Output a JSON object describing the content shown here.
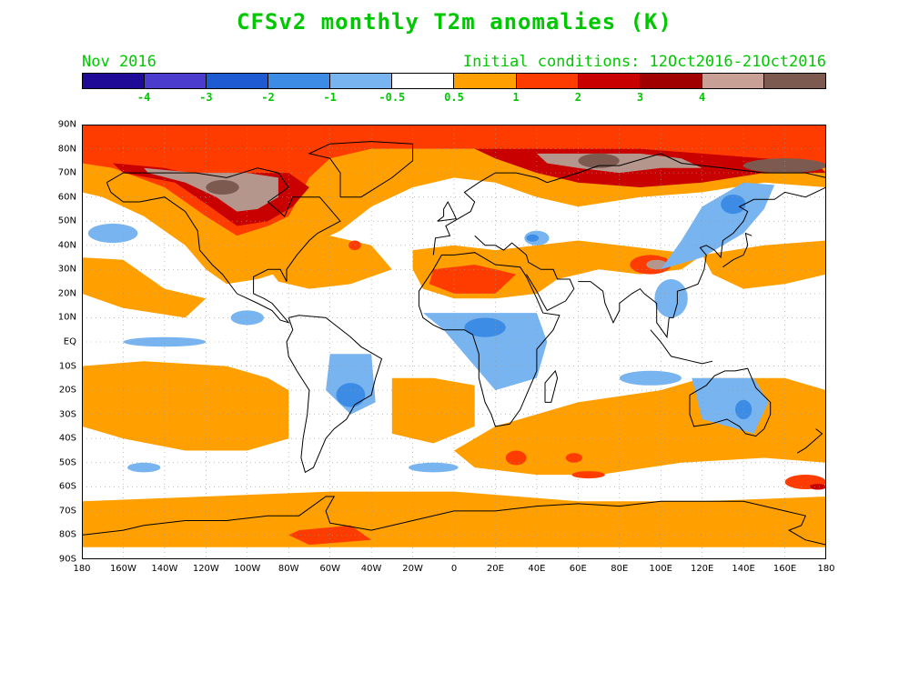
{
  "title": "CFSv2 monthly T2m anomalies (K)",
  "valid_label": "Nov 2016",
  "ic_label": "Initial conditions: 12Oct2016-21Oct2016",
  "colorbar": {
    "colors": [
      "#1e0a96",
      "#4b3ccd",
      "#1e5ad2",
      "#3c8ce6",
      "#78b4f0",
      "#ffffff",
      "#ffa000",
      "#ff3c00",
      "#c80000",
      "#a00000",
      "#c8a096",
      "#7d5a50"
    ],
    "labels": [
      "-4",
      "-3",
      "-2",
      "-1",
      "-0.5",
      "0.5",
      "1",
      "2",
      "3",
      "4"
    ]
  },
  "map": {
    "lat_labels": [
      "90N",
      "80N",
      "70N",
      "60N",
      "50N",
      "40N",
      "30N",
      "20N",
      "10N",
      "EQ",
      "10S",
      "20S",
      "30S",
      "40S",
      "50S",
      "60S",
      "70S",
      "80S",
      "90S"
    ],
    "lon_labels": [
      "180",
      "160W",
      "140W",
      "120W",
      "100W",
      "80W",
      "60W",
      "40W",
      "20W",
      "0",
      "20E",
      "40E",
      "60E",
      "80E",
      "100E",
      "120E",
      "140E",
      "160E",
      "180"
    ],
    "colors": {
      "warm05": "#ffa000",
      "warm1": "#ff3c00",
      "warm2": "#c80000",
      "warm3": "#a00000",
      "warm4": "#b4968c",
      "warm5": "#7d5a50",
      "cool05": "#78b4f0",
      "cool1": "#3c8ce6"
    }
  }
}
